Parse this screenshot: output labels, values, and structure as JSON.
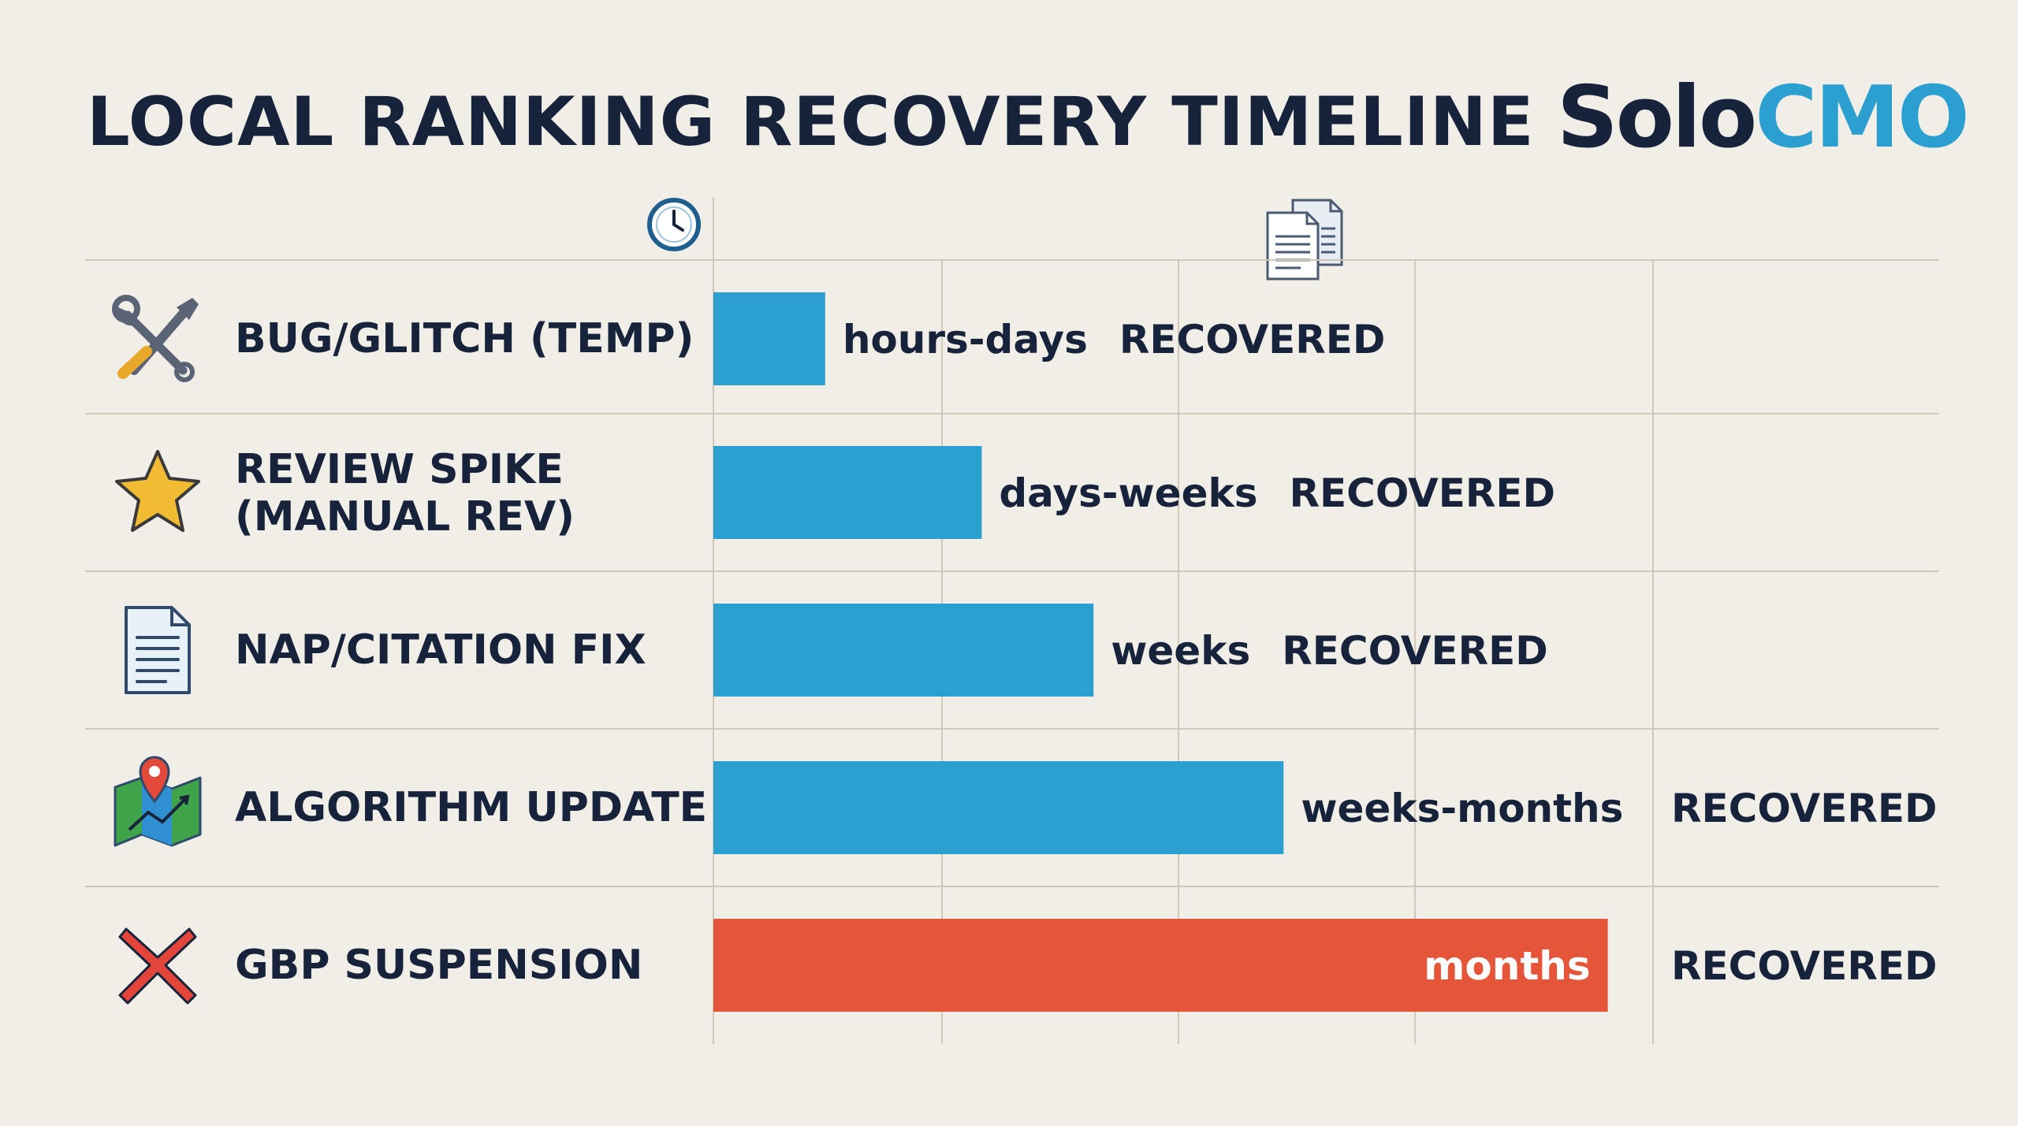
{
  "header": {
    "title": "LOCAL RANKING RECOVERY TIMELINE",
    "brand_part1": "Solo",
    "brand_part2": "CMO"
  },
  "colors": {
    "primary_bar": "#2a9fd0",
    "highlight_bar": "#e4553a",
    "grid": "#cfc7b8",
    "text": "#16233a",
    "background": "#f1eee8"
  },
  "chart_data": {
    "type": "bar",
    "orientation": "horizontal",
    "categories": [
      "BUG/GLITCH (TEMP)",
      "REVIEW SPIKE\n(MANUAL REV)",
      "NAP/CITATION FIX",
      "ALGORITHM UPDATE",
      "GBP SUSPENSION"
    ],
    "series": [
      {
        "values": [
          0.5,
          1.2,
          1.7,
          2.55,
          4.0
        ],
        "duration_labels": [
          "hours-days",
          "days-weeks",
          "weeks",
          "weeks-months",
          "months"
        ],
        "status_labels": [
          "RECOVERED",
          "RECOVERED",
          "RECOVERED",
          "RECOVERED",
          "RECOVERED"
        ]
      }
    ],
    "highlight_index": 4,
    "xlim": [
      0,
      5.2
    ],
    "grid": true,
    "header_icons": [
      "clock-icon",
      "documents-icon"
    ],
    "row_icons": [
      "wrench-screwdriver-icon",
      "star-icon",
      "document-icon",
      "map-pin-icon",
      "x-mark-icon"
    ]
  }
}
